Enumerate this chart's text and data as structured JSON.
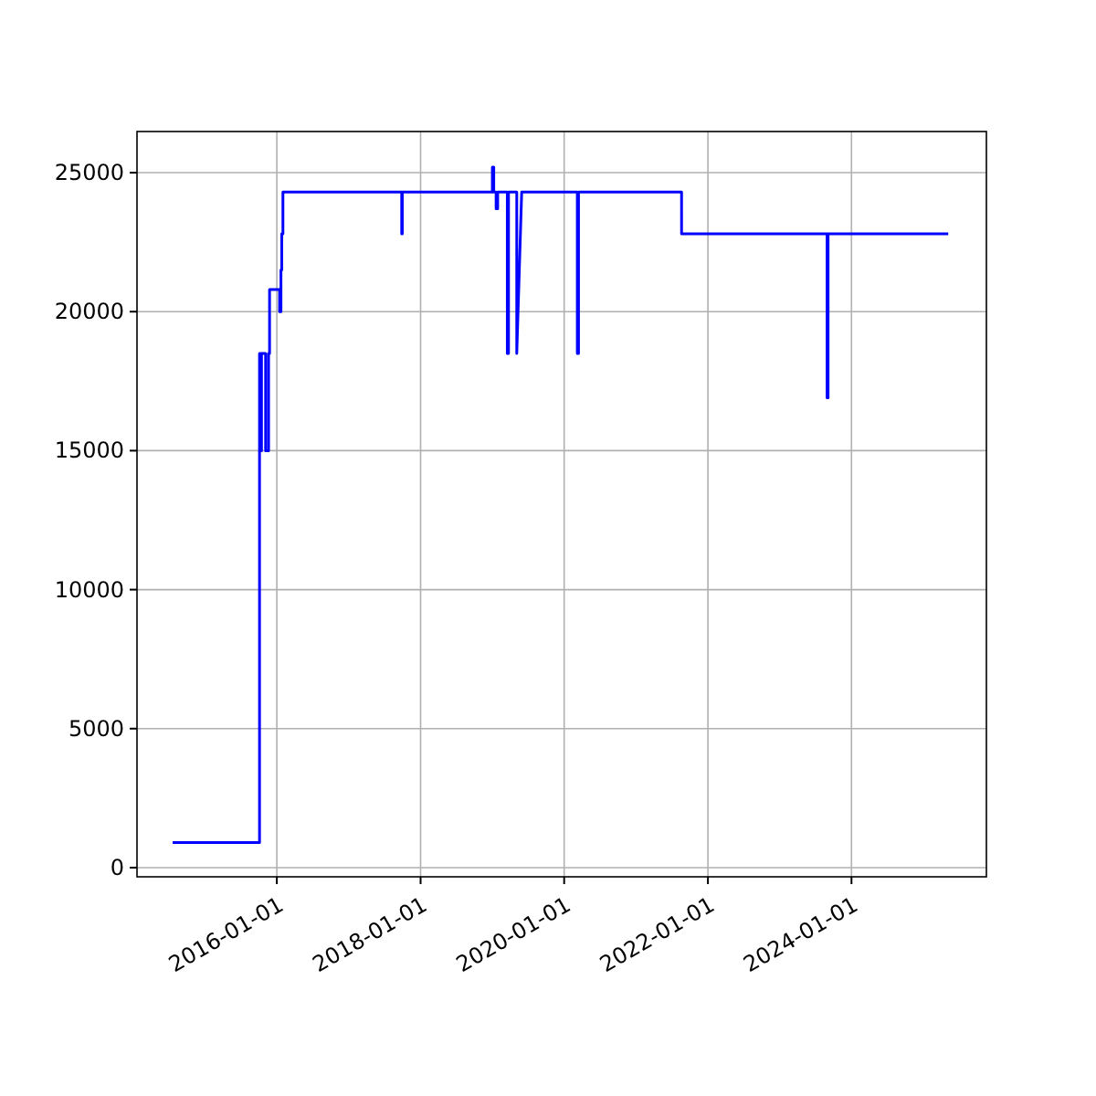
{
  "chart_data": {
    "type": "line",
    "xlim": [
      "2014-01-20",
      "2025-11-17"
    ],
    "ylim": [
      -330,
      26480
    ],
    "xticks": [
      {
        "value": "2016-01-01",
        "label": "2016-01-01"
      },
      {
        "value": "2018-01-01",
        "label": "2018-01-01"
      },
      {
        "value": "2020-01-01",
        "label": "2020-01-01"
      },
      {
        "value": "2022-01-01",
        "label": "2022-01-01"
      },
      {
        "value": "2024-01-01",
        "label": "2024-01-01"
      }
    ],
    "yticks": [
      0,
      5000,
      10000,
      15000,
      20000,
      25000
    ],
    "grid": true,
    "line_style": "solid",
    "series": [
      {
        "color": "#0000ff",
        "x": [
          "2014-07-20",
          "2015-10-05",
          "2015-10-05",
          "2015-10-10",
          "2015-10-10",
          "2015-10-15",
          "2015-10-15",
          "2015-11-05",
          "2015-11-05",
          "2015-11-20",
          "2015-11-20",
          "2015-11-25",
          "2015-11-25",
          "2016-01-15",
          "2016-01-15",
          "2016-01-22",
          "2016-01-22",
          "2016-01-26",
          "2016-01-26",
          "2016-02-01",
          "2016-02-01",
          "2017-09-27",
          "2017-09-27",
          "2017-09-30",
          "2017-09-30",
          "2019-01-01",
          "2019-01-01",
          "2019-01-08",
          "2019-01-08",
          "2019-01-20",
          "2019-01-20",
          "2019-01-28",
          "2019-01-28",
          "2019-03-18",
          "2019-03-18",
          "2019-03-24",
          "2019-03-24",
          "2019-05-05",
          "2019-05-05",
          "2019-05-30",
          "2020-03-08",
          "2020-03-08",
          "2020-03-14",
          "2020-03-14",
          "2021-08-20",
          "2021-08-20",
          "2023-08-30",
          "2023-08-30",
          "2023-09-04",
          "2023-09-04",
          "2025-05-07"
        ],
        "values": [
          900,
          900,
          18500,
          18500,
          15000,
          15000,
          18500,
          18500,
          15000,
          15000,
          18500,
          18500,
          20800,
          20800,
          20000,
          20000,
          21500,
          21500,
          22800,
          22800,
          24300,
          24300,
          22800,
          22800,
          24300,
          24300,
          25200,
          25200,
          24300,
          24300,
          23700,
          23700,
          24300,
          24300,
          18500,
          18500,
          24300,
          24300,
          18500,
          24300,
          24300,
          18500,
          18500,
          24300,
          24300,
          22800,
          22800,
          16900,
          16900,
          22800,
          22800
        ]
      }
    ]
  }
}
